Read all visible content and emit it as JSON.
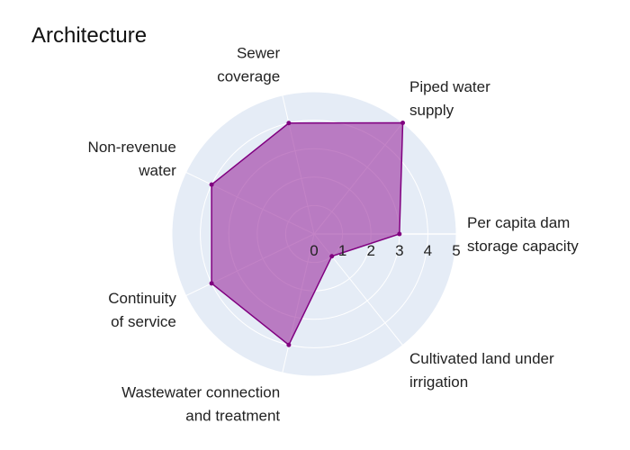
{
  "chart_data": {
    "type": "radar",
    "title": "Architecture",
    "axes": [
      [
        "Per capita dam",
        "storage capacity"
      ],
      [
        "Piped water",
        "supply"
      ],
      [
        "Sewer",
        "coverage"
      ],
      [
        "Non-revenue",
        "water"
      ],
      [
        "Continuity",
        "of service"
      ],
      [
        "Wastewater connection",
        "and treatment"
      ],
      [
        "Cultivated land under",
        "irrigation"
      ]
    ],
    "values": [
      3,
      5,
      4,
      4,
      4,
      4,
      1
    ],
    "radial_range": [
      0,
      5
    ],
    "radial_ticks": [
      "0",
      "1",
      "2",
      "3",
      "4",
      "5"
    ],
    "colors": {
      "fill": "#9b30a0",
      "line": "#800080",
      "polar_bg": "#e5ecf6",
      "grid": "#ffffff"
    }
  }
}
